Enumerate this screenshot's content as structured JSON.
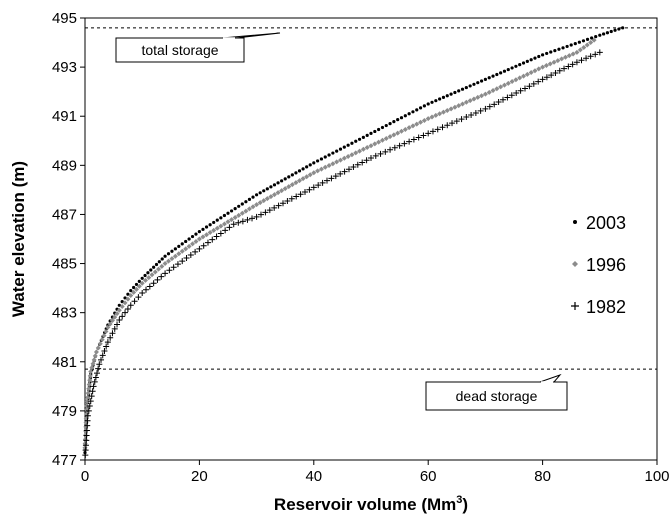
{
  "chart_data": {
    "type": "scatter",
    "xlabel": "Reservoir volume (Mm",
    "xlabel_sup": "3",
    "xlabel_suffix": ")",
    "ylabel": "Water elevation (m)",
    "xlim": [
      0,
      100
    ],
    "ylim": [
      477,
      495
    ],
    "xticks": [
      0,
      20,
      40,
      60,
      80,
      100
    ],
    "yticks": [
      477,
      479,
      481,
      483,
      485,
      487,
      489,
      491,
      493,
      495
    ],
    "grid": false,
    "legend_position": "right",
    "reference_lines": [
      {
        "label": "total storage",
        "y": 494.6
      },
      {
        "label": "dead storage",
        "y": 480.7
      }
    ],
    "series": [
      {
        "name": "2003",
        "marker": "dot",
        "color": "#000000",
        "points": [
          [
            0.0,
            477.3
          ],
          [
            0.3,
            479.0
          ],
          [
            1.0,
            480.5
          ],
          [
            2.0,
            481.4
          ],
          [
            4.0,
            482.5
          ],
          [
            6.0,
            483.3
          ],
          [
            8.0,
            483.9
          ],
          [
            10.0,
            484.4
          ],
          [
            14.0,
            485.3
          ],
          [
            20.0,
            486.3
          ],
          [
            30.0,
            487.8
          ],
          [
            40.0,
            489.1
          ],
          [
            50.0,
            490.3
          ],
          [
            60.0,
            491.5
          ],
          [
            70.0,
            492.5
          ],
          [
            80.0,
            493.5
          ],
          [
            90.0,
            494.3
          ],
          [
            94.0,
            494.6
          ]
        ]
      },
      {
        "name": "1996",
        "marker": "diamond",
        "color": "#8c8c8c",
        "points": [
          [
            0.0,
            477.5
          ],
          [
            0.3,
            479.2
          ],
          [
            1.0,
            480.6
          ],
          [
            2.0,
            481.4
          ],
          [
            4.0,
            482.4
          ],
          [
            6.0,
            483.1
          ],
          [
            8.0,
            483.7
          ],
          [
            10.0,
            484.2
          ],
          [
            14.0,
            485.0
          ],
          [
            20.0,
            486.0
          ],
          [
            30.0,
            487.4
          ],
          [
            40.0,
            488.7
          ],
          [
            50.0,
            489.8
          ],
          [
            60.0,
            490.9
          ],
          [
            70.0,
            491.9
          ],
          [
            80.0,
            493.0
          ],
          [
            86.0,
            493.6
          ],
          [
            89.0,
            494.1
          ]
        ]
      },
      {
        "name": "1982",
        "marker": "plus",
        "color": "#000000",
        "points": [
          [
            0.0,
            477.0
          ],
          [
            0.5,
            478.8
          ],
          [
            1.5,
            480.0
          ],
          [
            2.5,
            480.9
          ],
          [
            4.0,
            481.8
          ],
          [
            6.0,
            482.7
          ],
          [
            8.0,
            483.3
          ],
          [
            10.0,
            483.8
          ],
          [
            14.0,
            484.6
          ],
          [
            20.0,
            485.6
          ],
          [
            26.0,
            486.6
          ],
          [
            30.0,
            486.9
          ],
          [
            40.0,
            488.1
          ],
          [
            50.0,
            489.3
          ],
          [
            60.0,
            490.3
          ],
          [
            70.0,
            491.3
          ],
          [
            80.0,
            492.5
          ],
          [
            86.0,
            493.2
          ],
          [
            90.0,
            493.6
          ]
        ]
      }
    ]
  }
}
